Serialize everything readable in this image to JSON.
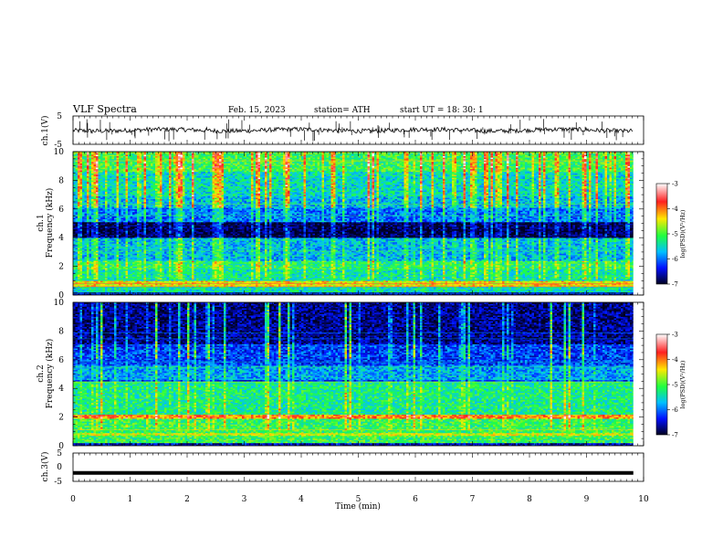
{
  "header": {
    "title": "VLF  Spectra",
    "date": "Feb. 15, 2023",
    "station": "station= ATH",
    "start": "start  UT  =   18: 30: 1"
  },
  "chart_data": [
    {
      "type": "line",
      "id": "ch1_waveform",
      "ylabel": "ch.1(V)",
      "yticks": [
        "5",
        "-5"
      ],
      "ylim": [
        -5,
        5
      ],
      "note_values": "noisy waveform around 0 V with sparse downward spikes"
    },
    {
      "type": "heatmap",
      "id": "ch1_spectrogram",
      "ylabel_line1": "ch.1",
      "ylabel_line2": "Frequency (kHz)",
      "ylim": [
        0,
        10
      ],
      "yticks": [
        "0",
        "2",
        "4",
        "6",
        "8",
        "10"
      ],
      "colorbar": {
        "label": "log(PSD)(V²/Hz)",
        "ticks": [
          "-3",
          "-4",
          "-5",
          "-6",
          "-7"
        ],
        "range": [
          -7,
          -3
        ]
      },
      "bands_khz": [
        {
          "from": 4.0,
          "to": 5.0,
          "level": -7
        },
        {
          "from": 0.6,
          "to": 0.9,
          "level": -4.3
        },
        {
          "from": 1.8,
          "to": 2.6,
          "level": -5.3
        }
      ]
    },
    {
      "type": "heatmap",
      "id": "ch2_spectrogram",
      "ylabel_line1": "ch.2",
      "ylabel_line2": "Frequency (kHz)",
      "ylim": [
        0,
        10
      ],
      "yticks": [
        "0",
        "2",
        "4",
        "6",
        "8",
        "10"
      ],
      "colorbar": {
        "label": "log(PSD)(V²/Hz)",
        "ticks": [
          "-3",
          "-4",
          "-5",
          "-6",
          "-7"
        ],
        "range": [
          -7,
          -3
        ]
      },
      "bands_khz": [
        {
          "from": 7.0,
          "to": 10.0,
          "level": -7
        },
        {
          "from": 1.8,
          "to": 2.2,
          "level": -4.2
        },
        {
          "from": 2.2,
          "to": 4.5,
          "level": -5.4
        }
      ]
    },
    {
      "type": "line",
      "id": "ch3_waveform",
      "ylabel": "ch.3(V)",
      "yticks": [
        "5",
        "0",
        "-5"
      ],
      "ylim": [
        -5,
        5
      ],
      "constant_value": -2
    }
  ],
  "time_axis": {
    "xlabel": "Time  (min)",
    "ticks": [
      "0",
      "1",
      "2",
      "3",
      "4",
      "5",
      "6",
      "7",
      "8",
      "9",
      "10"
    ],
    "range": [
      0,
      10
    ],
    "data_end": 9.82
  },
  "colors": {
    "frame": "#000000",
    "scale": [
      "#ffffff",
      "#ff0000",
      "#ffff00",
      "#00ff66",
      "#00c8ff",
      "#0000ff",
      "#000033"
    ]
  }
}
